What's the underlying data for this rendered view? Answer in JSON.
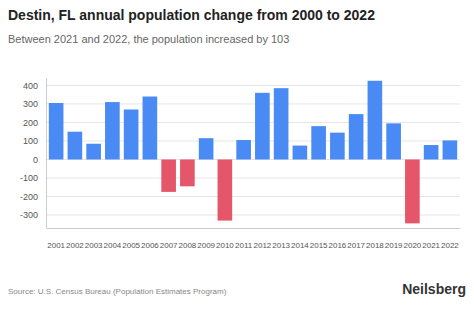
{
  "chart_data": {
    "type": "bar",
    "title": "Destin, FL annual population change from 2000 to 2022",
    "subtitle": "Between 2021 and 2022, the population increased by 103",
    "annotations": [
      "Source: U.S. Census Bureau (Population Estimates Program)",
      "Neilsberg"
    ],
    "categories": [
      "2001",
      "2002",
      "2003",
      "2004",
      "2005",
      "2006",
      "2007",
      "2008",
      "2009",
      "2010",
      "2011",
      "2012",
      "2013",
      "2014",
      "2015",
      "2016",
      "2017",
      "2018",
      "2019",
      "2020",
      "2021",
      "2022"
    ],
    "values": [
      305,
      150,
      85,
      310,
      270,
      340,
      -175,
      -145,
      115,
      -330,
      105,
      360,
      385,
      75,
      180,
      145,
      245,
      425,
      195,
      -345,
      78,
      103
    ],
    "colors": [
      "#4a8af4",
      "#4a8af4",
      "#4a8af4",
      "#4a8af4",
      "#4a8af4",
      "#4a8af4",
      "#e5566b",
      "#e5566b",
      "#4a8af4",
      "#e5566b",
      "#4a8af4",
      "#4a8af4",
      "#4a8af4",
      "#4a8af4",
      "#4a8af4",
      "#4a8af4",
      "#4a8af4",
      "#4a8af4",
      "#4a8af4",
      "#e5566b",
      "#4a8af4",
      "#4a8af4"
    ],
    "ylim": [
      -370,
      440
    ],
    "yticks": [
      -300,
      -200,
      -100,
      0,
      100,
      200,
      300,
      400
    ],
    "grid": true
  }
}
